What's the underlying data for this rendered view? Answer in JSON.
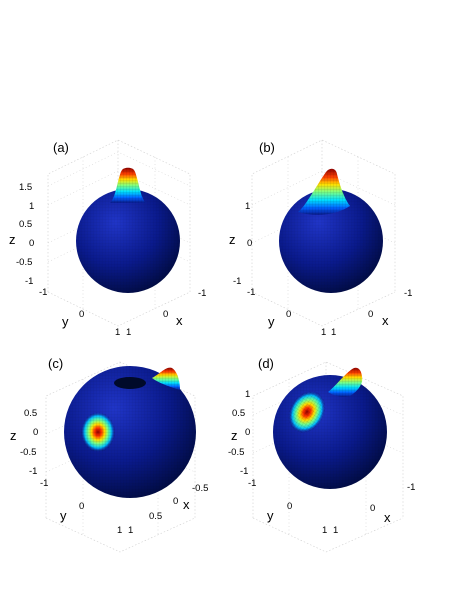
{
  "chart_data": [
    {
      "type": "surface",
      "panel_label": "(a)",
      "axis_names": {
        "x": "x",
        "y": "y",
        "z": "z"
      },
      "z_ticks": [
        "1.5",
        "1",
        "0.5",
        "0",
        "-0.5",
        "-1"
      ],
      "y_ticks": [
        "-1",
        "0",
        "1"
      ],
      "x_ticks": [
        "1",
        "0",
        "-1"
      ],
      "zlim": [
        -1,
        1.8
      ],
      "peaks": [
        {
          "azimuth_deg": 0,
          "elevation_deg": 90,
          "max_radius": 1.9
        }
      ]
    },
    {
      "type": "surface",
      "panel_label": "(b)",
      "axis_names": {
        "x": "x",
        "y": "y",
        "z": "z"
      },
      "z_ticks": [
        "1",
        "0",
        "-1"
      ],
      "y_ticks": [
        "-1",
        "0",
        "1"
      ],
      "x_ticks": [
        "1",
        "0",
        "-1"
      ],
      "zlim": [
        -1,
        1.8
      ],
      "peaks": [
        {
          "azimuth_deg": 0,
          "elevation_deg": 75,
          "max_radius": 1.9
        }
      ]
    },
    {
      "type": "surface",
      "panel_label": "(c)",
      "axis_names": {
        "x": "x",
        "y": "y",
        "z": "z"
      },
      "z_ticks": [
        "0.5",
        "0",
        "-0.5",
        "-1"
      ],
      "y_ticks": [
        "-1",
        "0",
        "1"
      ],
      "x_ticks": [
        "1",
        "0.5",
        "0",
        "-0.5"
      ],
      "zlim": [
        -1,
        1
      ],
      "peaks": [
        {
          "azimuth_deg": -90,
          "elevation_deg": 0,
          "max_radius": 1.3
        },
        {
          "azimuth_deg": 30,
          "elevation_deg": 60,
          "max_radius": 1.3
        }
      ]
    },
    {
      "type": "surface",
      "panel_label": "(d)",
      "axis_names": {
        "x": "x",
        "y": "y",
        "z": "z"
      },
      "z_ticks": [
        "1",
        "0.5",
        "0",
        "-0.5",
        "-1"
      ],
      "y_ticks": [
        "-1",
        "0",
        "1"
      ],
      "x_ticks": [
        "1",
        "0",
        "-1"
      ],
      "zlim": [
        -1,
        1.3
      ],
      "peaks": [
        {
          "azimuth_deg": -60,
          "elevation_deg": 20,
          "max_radius": 1.3
        },
        {
          "azimuth_deg": 20,
          "elevation_deg": 60,
          "max_radius": 1.3
        }
      ]
    }
  ],
  "colors": {
    "sphere_base": "#0a1a8c",
    "sphere_dark": "#000a3c",
    "colormap": [
      "#00008f",
      "#0050ff",
      "#00dfff",
      "#70ff90",
      "#ffe000",
      "#ff5000",
      "#900000"
    ]
  }
}
